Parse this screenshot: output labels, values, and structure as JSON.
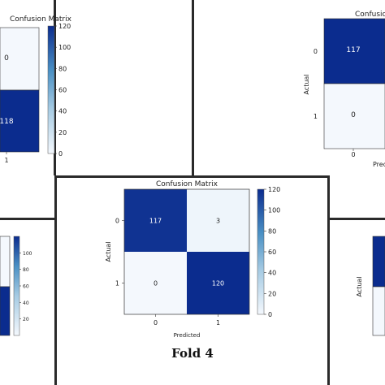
{
  "colors": {
    "dark": "#0b2c8e",
    "light": "#f4f8fd",
    "frame": "#2a2a2a"
  },
  "fold_label": "Fold 4",
  "chart_data": [
    {
      "type": "heatmap",
      "title": "Confusion Matrix",
      "xlabel": "Predicted",
      "ylabel": "Actual",
      "x_ticks": [
        "0",
        "1"
      ],
      "y_ticks": [
        "0",
        "1"
      ],
      "matrix": [
        [
          117,
          3
        ],
        [
          0,
          120
        ]
      ],
      "colorbar": {
        "min": 0,
        "max": 120,
        "ticks": [
          0,
          20,
          40,
          60,
          80,
          100,
          120
        ]
      }
    },
    {
      "type": "heatmap",
      "title": "Confusion Matrix",
      "visible_portion": "top-left cropped",
      "x_ticks": [
        "1"
      ],
      "visible_cells": [
        {
          "row": 0,
          "col": 1,
          "value": 0
        },
        {
          "row": 1,
          "col": 1,
          "value": 118
        }
      ],
      "colorbar": {
        "min": 0,
        "max": 120,
        "ticks": [
          0,
          20,
          40,
          60,
          80,
          100,
          120
        ]
      }
    },
    {
      "type": "heatmap",
      "title": "Confusion",
      "ylabel": "Actual",
      "xlabel": "Predi",
      "x_ticks": [
        "0"
      ],
      "y_ticks": [
        "0",
        "1"
      ],
      "visible_cells": [
        {
          "row": 0,
          "col": 0,
          "value": 117
        },
        {
          "row": 1,
          "col": 0,
          "value": 0
        }
      ]
    },
    {
      "type": "heatmap",
      "visible_portion": "bottom-left cropped",
      "colorbar": {
        "ticks": [
          20,
          40,
          60,
          80,
          100
        ]
      }
    },
    {
      "type": "heatmap",
      "visible_portion": "bottom-right cropped",
      "ylabel": "Actual"
    }
  ]
}
